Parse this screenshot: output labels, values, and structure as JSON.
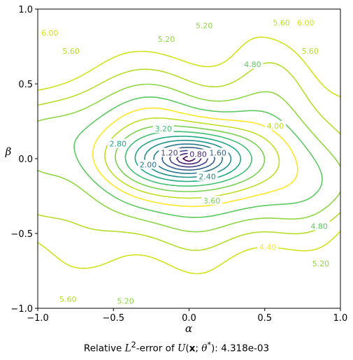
{
  "chart_data": {
    "type": "contour",
    "xlabel": "α",
    "ylabel": "β",
    "xlim": [
      -1.0,
      1.0
    ],
    "ylim": [
      -1.0,
      1.0
    ],
    "xticks": [
      "−1.0",
      "−0.5",
      "0.0",
      "0.5",
      "1.0"
    ],
    "yticks": [
      "−1.0",
      "−0.5",
      "0.0",
      "0.5",
      "1.0"
    ],
    "xtick_values": [
      -1.0,
      -0.5,
      0.0,
      0.5,
      1.0
    ],
    "ytick_values": [
      -1.0,
      -0.5,
      0.0,
      0.5,
      1.0
    ],
    "levels": [
      0.4,
      0.8,
      1.2,
      1.6,
      2.0,
      2.4,
      2.8,
      3.2,
      3.6,
      4.0,
      4.4,
      4.8,
      5.2,
      5.6,
      6.0
    ],
    "level_colors": [
      "#440154",
      "#482575",
      "#414487",
      "#35608d",
      "#2a788e",
      "#21908d",
      "#22a884",
      "#43bf71",
      "#7ad151",
      "#bddf26",
      "#fde725",
      "#5ec962",
      "#8fd744",
      "#b5de2b",
      "#d2e21b"
    ],
    "contour_labels": [
      {
        "text": "0.80",
        "level": 0.8,
        "alpha": 0.06,
        "beta": 0.03
      },
      {
        "text": "1.20",
        "level": 1.2,
        "alpha": -0.13,
        "beta": 0.04
      },
      {
        "text": "1.60",
        "level": 1.6,
        "alpha": 0.19,
        "beta": 0.04
      },
      {
        "text": "2.00",
        "level": 2.0,
        "alpha": -0.27,
        "beta": -0.04
      },
      {
        "text": "2.40",
        "level": 2.4,
        "alpha": 0.12,
        "beta": -0.12
      },
      {
        "text": "2.80",
        "level": 2.8,
        "alpha": -0.47,
        "beta": 0.1
      },
      {
        "text": "3.20",
        "level": 3.2,
        "alpha": -0.17,
        "beta": 0.2
      },
      {
        "text": "3.60",
        "level": 3.6,
        "alpha": 0.15,
        "beta": -0.28
      },
      {
        "text": "4.00",
        "level": 4.0,
        "alpha": 0.57,
        "beta": 0.22
      },
      {
        "text": "4.40",
        "level": 4.4,
        "alpha": 0.52,
        "beta": -0.59
      },
      {
        "text": "4.80",
        "level": 4.8,
        "alpha": 0.42,
        "beta": 0.63
      },
      {
        "text": "4.80",
        "level": 4.8,
        "alpha": 0.86,
        "beta": -0.45
      },
      {
        "text": "5.20",
        "level": 5.2,
        "alpha": -0.15,
        "beta": 0.8
      },
      {
        "text": "5.20",
        "level": 5.2,
        "alpha": 0.1,
        "beta": 0.89
      },
      {
        "text": "5.20",
        "level": 5.2,
        "alpha": -0.42,
        "beta": -0.95
      },
      {
        "text": "5.20",
        "level": 5.2,
        "alpha": 0.87,
        "beta": -0.7
      },
      {
        "text": "5.60",
        "level": 5.6,
        "alpha": -0.78,
        "beta": 0.72
      },
      {
        "text": "5.60",
        "level": 5.6,
        "alpha": 0.61,
        "beta": 0.91
      },
      {
        "text": "5.60",
        "level": 5.6,
        "alpha": 0.8,
        "beta": 0.72
      },
      {
        "text": "5.60",
        "level": 5.6,
        "alpha": -0.8,
        "beta": -0.94
      },
      {
        "text": "6.00",
        "level": 6.0,
        "alpha": -0.92,
        "beta": 0.84
      },
      {
        "text": "6.00",
        "level": 6.0,
        "alpha": 0.77,
        "beta": 0.91
      }
    ]
  },
  "caption": {
    "prefix": "Relative ",
    "L": "L",
    "sup": "2",
    "mid1": "-error of ",
    "U": "U",
    "open": "(",
    "x": "x",
    "semi": "; ",
    "theta": "θ",
    "star": "*",
    "close": "): ",
    "value": "4.318e-03"
  }
}
